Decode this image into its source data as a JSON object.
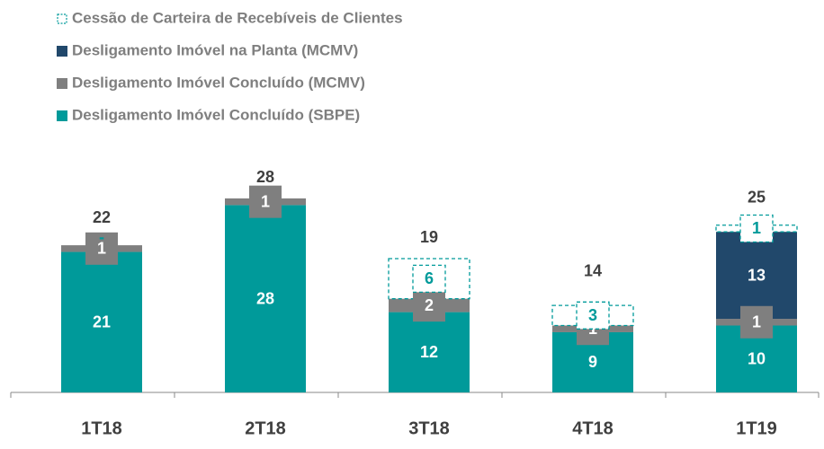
{
  "chart_data": {
    "type": "stacked_bar",
    "categories": [
      "1T18",
      "2T18",
      "3T18",
      "4T18",
      "1T19"
    ],
    "series": [
      {
        "name": "Desligamento Imóvel Concluído (SBPE)",
        "color": "#009a9a",
        "values": [
          21,
          28,
          12,
          9,
          10
        ]
      },
      {
        "name": "Desligamento Imóvel Concluído (MCMV)",
        "color": "#7f7f7f",
        "values": [
          1,
          1,
          2,
          1,
          1
        ]
      },
      {
        "name": "Desligamento Imóvel na Planta (MCMV)",
        "color": "#21486b",
        "values": [
          null,
          null,
          null,
          null,
          13
        ]
      },
      {
        "name": "Cessão de Carteira de Recebíveis de Clientes",
        "color": "#009a9a",
        "style": "dashed",
        "values": [
          0,
          null,
          6,
          3,
          1
        ],
        "value_labels": [
          "-",
          null,
          "6",
          "3",
          "1"
        ]
      }
    ],
    "totals": [
      22,
      28,
      19,
      14,
      25
    ],
    "ylim": [
      0,
      30
    ]
  }
}
